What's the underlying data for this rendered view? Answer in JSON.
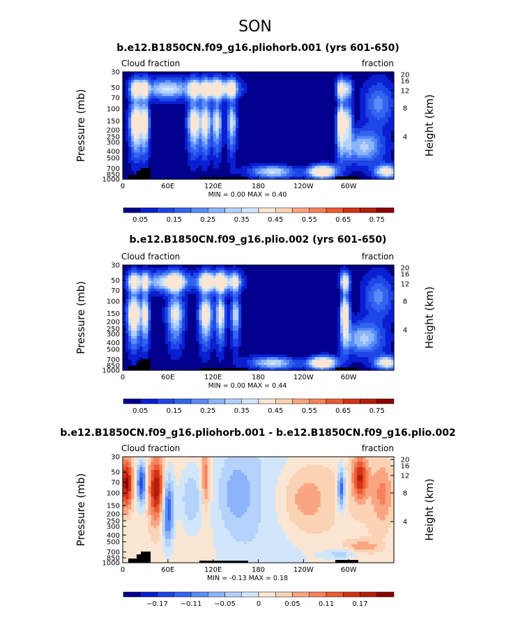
{
  "page_title": "SON",
  "chart_data": [
    {
      "type": "heatmap",
      "title": "b.e12.B1850CN.f09_g16.pliohorb.001 (yrs 601-650)",
      "left_label": "Cloud fraction",
      "right_label": "fraction",
      "ylabel": "Pressure (mb)",
      "ylabel_right": "Height (km)",
      "x_ticks": [
        "0",
        "60E",
        "120E",
        "180",
        "120W",
        "60W"
      ],
      "y_ticks": [
        "30",
        "50",
        "70",
        "100",
        "150",
        "200",
        "250",
        "300",
        "400",
        "500",
        "700",
        "850",
        "1000"
      ],
      "y_ticks_right": [
        "20",
        "16",
        "12",
        "8",
        "4"
      ],
      "stats": "MIN =    0.00   MAX =    0.40",
      "colorbar_labels": [
        "0.05",
        "0.15",
        "0.25",
        "0.35",
        "0.45",
        "0.55",
        "0.65",
        "0.75"
      ],
      "colorbar_colors": [
        "#00008c",
        "#0a1ed2",
        "#1e46e6",
        "#3264f0",
        "#5a8cf5",
        "#8cb4fa",
        "#b4d2fa",
        "#d2e6fa",
        "#fae6d2",
        "#fad2b4",
        "#faa582",
        "#f5825a",
        "#eb5a32",
        "#d23214",
        "#b41e0a",
        "#8c0000"
      ],
      "value_range": [
        0.0,
        0.4
      ]
    },
    {
      "type": "heatmap",
      "title": "b.e12.B1850CN.f09_g16.plio.002 (yrs 601-650)",
      "left_label": "Cloud fraction",
      "right_label": "fraction",
      "ylabel": "Pressure (mb)",
      "ylabel_right": "Height (km)",
      "x_ticks": [
        "0",
        "60E",
        "120E",
        "180",
        "120W",
        "60W"
      ],
      "y_ticks": [
        "30",
        "50",
        "70",
        "100",
        "150",
        "200",
        "250",
        "300",
        "400",
        "500",
        "700",
        "850",
        "1000"
      ],
      "y_ticks_right": [
        "20",
        "16",
        "12",
        "8",
        "4"
      ],
      "stats": "MIN =    0.00   MAX =    0.44",
      "colorbar_labels": [
        "0.05",
        "0.15",
        "0.25",
        "0.35",
        "0.45",
        "0.55",
        "0.65",
        "0.75"
      ],
      "colorbar_colors": [
        "#00008c",
        "#0a1ed2",
        "#1e46e6",
        "#3264f0",
        "#5a8cf5",
        "#8cb4fa",
        "#b4d2fa",
        "#d2e6fa",
        "#fae6d2",
        "#fad2b4",
        "#faa582",
        "#f5825a",
        "#eb5a32",
        "#d23214",
        "#b41e0a",
        "#8c0000"
      ],
      "value_range": [
        0.0,
        0.44
      ]
    },
    {
      "type": "heatmap",
      "title": "b.e12.B1850CN.f09_g16.pliohorb.001 - b.e12.B1850CN.f09_g16.plio.002",
      "left_label": "Cloud fraction",
      "right_label": "fraction",
      "ylabel": "Pressure (mb)",
      "ylabel_right": "Height (km)",
      "x_ticks": [
        "0",
        "60E",
        "120E",
        "180",
        "120W",
        "60W"
      ],
      "y_ticks": [
        "30",
        "50",
        "70",
        "100",
        "150",
        "200",
        "250",
        "300",
        "400",
        "500",
        "700",
        "850",
        "1000"
      ],
      "y_ticks_right": [
        "20",
        "16",
        "12",
        "8",
        "4"
      ],
      "stats": "MIN =   -0.13   MAX =    0.18",
      "colorbar_labels": [
        "−0.17",
        "−0.11",
        "−0.05",
        "0",
        "0.05",
        "0.11",
        "0.17"
      ],
      "colorbar_colors": [
        "#00008c",
        "#0a1ed2",
        "#1e46e6",
        "#3264f0",
        "#5a8cf5",
        "#8cb4fa",
        "#b4d2fa",
        "#d2e6fa",
        "#fae6d2",
        "#fad2b4",
        "#faa582",
        "#f5825a",
        "#eb5a32",
        "#d23214",
        "#b41e0a",
        "#8c0000"
      ],
      "value_range": [
        -0.13,
        0.18
      ]
    }
  ]
}
